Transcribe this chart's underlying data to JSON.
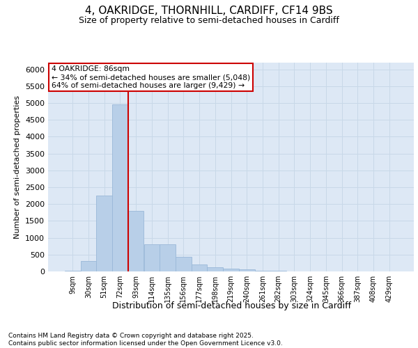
{
  "title1": "4, OAKRIDGE, THORNHILL, CARDIFF, CF14 9BS",
  "title2": "Size of property relative to semi-detached houses in Cardiff",
  "xlabel": "Distribution of semi-detached houses by size in Cardiff",
  "ylabel": "Number of semi-detached properties",
  "footnote": "Contains HM Land Registry data © Crown copyright and database right 2025.\nContains public sector information licensed under the Open Government Licence v3.0.",
  "bar_labels": [
    "9sqm",
    "30sqm",
    "51sqm",
    "72sqm",
    "93sqm",
    "114sqm",
    "135sqm",
    "156sqm",
    "177sqm",
    "198sqm",
    "219sqm",
    "240sqm",
    "261sqm",
    "282sqm",
    "303sqm",
    "324sqm",
    "345sqm",
    "366sqm",
    "387sqm",
    "408sqm",
    "429sqm"
  ],
  "bar_values": [
    20,
    310,
    2250,
    4950,
    1800,
    800,
    800,
    430,
    200,
    130,
    80,
    55,
    25,
    15,
    8,
    4,
    2,
    1,
    0,
    0,
    0
  ],
  "bar_color": "#b8cfe8",
  "bar_edgecolor": "#9ab8d8",
  "vline_color": "#cc0000",
  "annotation_box_edgecolor": "#cc0000",
  "annotation_box_facecolor": "white",
  "property_label": "4 OAKRIDGE: 86sqm",
  "annotation_smaller": "← 34% of semi-detached houses are smaller (5,048)",
  "annotation_larger": "64% of semi-detached houses are larger (9,429) →",
  "ylim": [
    0,
    6200
  ],
  "yticks": [
    0,
    500,
    1000,
    1500,
    2000,
    2500,
    3000,
    3500,
    4000,
    4500,
    5000,
    5500,
    6000
  ],
  "grid_color": "#c8d8e8",
  "bg_color": "#dde8f5",
  "vline_bar_index": 3.5
}
